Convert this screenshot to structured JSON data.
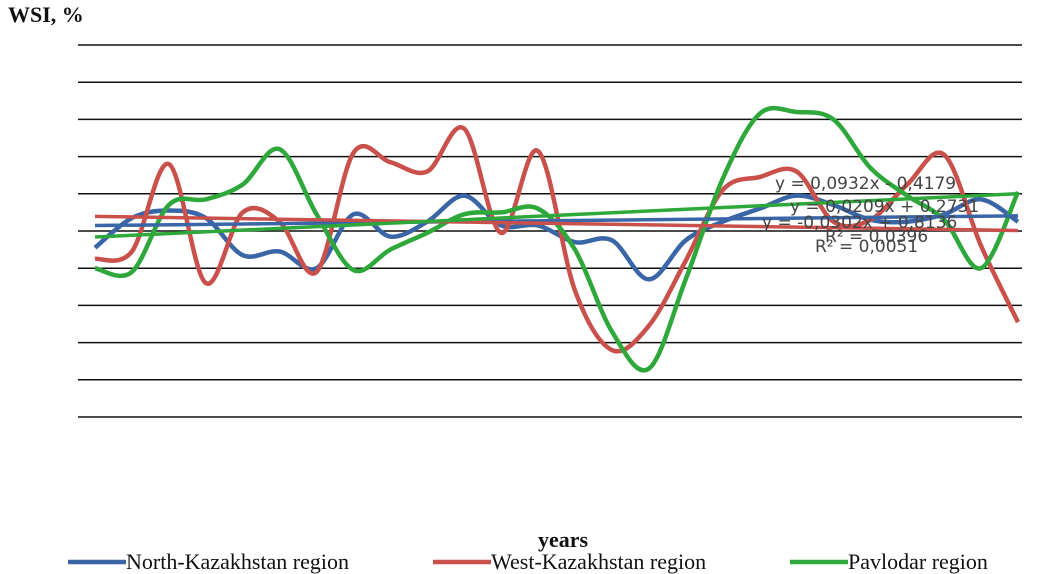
{
  "chart_data": {
    "type": "line",
    "title": "WSI, %",
    "x_label": "years",
    "categories": [
      null,
      null,
      null,
      null,
      null,
      null,
      null,
      null,
      null,
      null,
      null,
      null,
      null,
      null,
      null,
      null,
      null,
      null,
      null,
      null,
      null,
      null,
      null,
      null,
      null,
      null
    ],
    "ylim": [
      -10,
      10
    ],
    "yticks": [
      -10,
      -8,
      -6,
      -4,
      -2,
      0,
      2,
      4,
      6,
      8,
      10
    ],
    "ytick_labels": false,
    "grid": true,
    "legend": "bottom",
    "smooth": true,
    "series": [
      {
        "name": "North-Kazakhstan region",
        "color": "#3a66a8",
        "values": [
          -0.9,
          0.7,
          1.1,
          0.7,
          -1.3,
          -1.1,
          -2.0,
          0.9,
          -0.3,
          0.5,
          1.9,
          0.3,
          0.3,
          -0.6,
          -0.5,
          -2.6,
          -0.5,
          0.5,
          1.2,
          1.9,
          1.4,
          0.6,
          0.5,
          0.9,
          1.7,
          0.5
        ],
        "trend": [
          0.0209,
          0.2731
        ]
      },
      {
        "name": "West-Kazakhstan region",
        "color": "#c9504b",
        "values": [
          -1.5,
          -1.1,
          3.6,
          -2.8,
          1.0,
          0.5,
          -2.2,
          4.2,
          3.7,
          3.2,
          5.5,
          -0.1,
          4.3,
          -3.2,
          -6.4,
          -5.1,
          -1.6,
          2.2,
          2.9,
          3.2,
          0.5,
          0.6,
          2.5,
          4.1,
          -0.8,
          -4.9
        ],
        "trend": [
          -0.0302,
          0.8136
        ]
      },
      {
        "name": "Pavlodar region",
        "color": "#2ea83a",
        "values": [
          -2.0,
          -2.2,
          1.4,
          1.7,
          2.5,
          4.4,
          0.9,
          -2.1,
          -1.0,
          -0.1,
          0.9,
          1.0,
          1.2,
          -1.0,
          -5.4,
          -7.4,
          -2.6,
          2.8,
          6.3,
          6.4,
          6.0,
          3.4,
          1.9,
          0.6,
          -2.0,
          2.1
        ],
        "trend": [
          0.0932,
          -0.4179
        ]
      }
    ],
    "annotations": [
      "y = 0,0932x - 0,4179",
      "y = 0,0209x + 0,2731",
      "y = -0,0302x + 0,8136",
      "R² = 0,0396",
      "R² = 0,0051"
    ]
  }
}
